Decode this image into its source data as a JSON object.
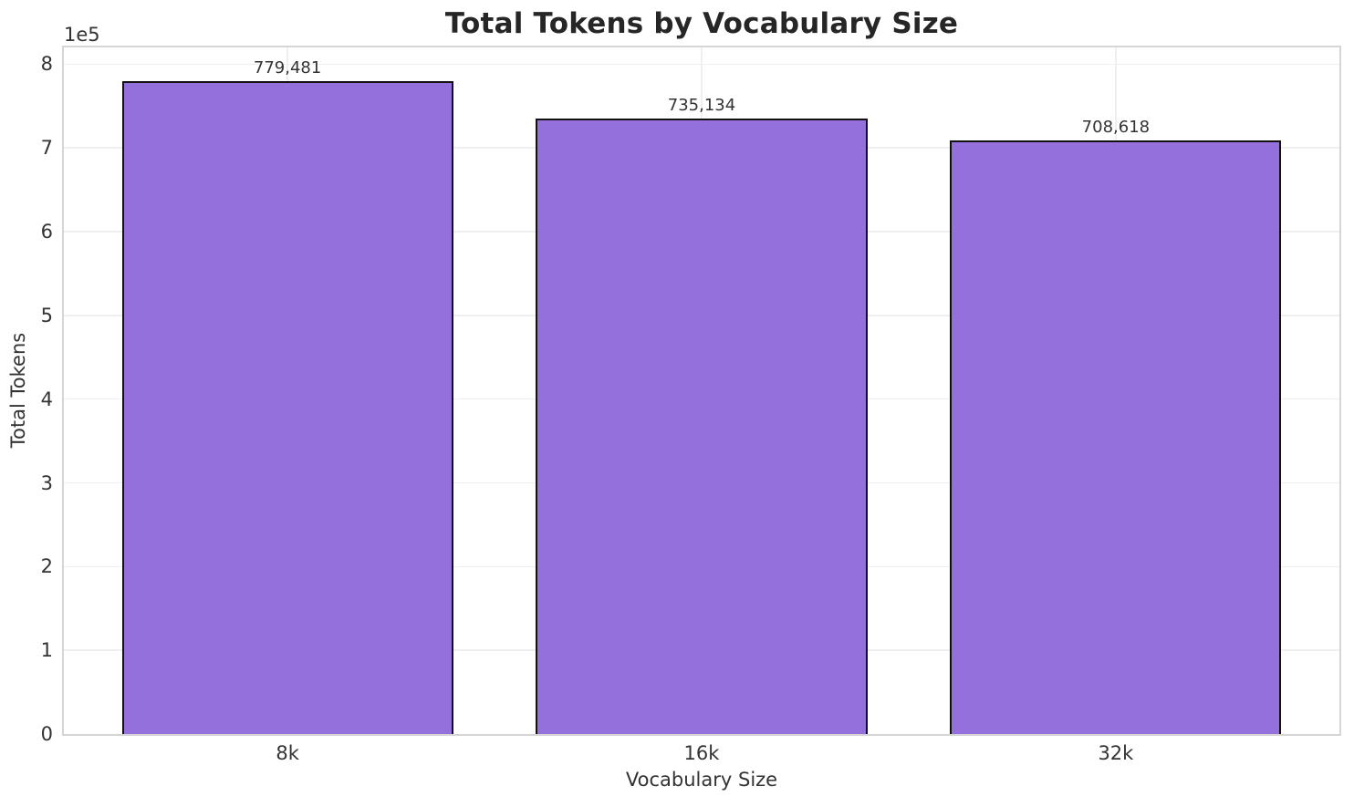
{
  "chart_data": {
    "type": "bar",
    "title": "Total Tokens by Vocabulary Size",
    "xlabel": "Vocabulary Size",
    "ylabel": "Total Tokens",
    "categories": [
      "8k",
      "16k",
      "32k"
    ],
    "values": [
      779481,
      735134,
      708618
    ],
    "bar_labels": [
      "779,481",
      "735,134",
      "708,618"
    ],
    "offset_text": "1e5",
    "y_ticks": [
      0,
      1,
      2,
      3,
      4,
      5,
      6,
      7,
      8
    ],
    "y_tick_scale": 100000,
    "ylim": [
      0,
      820000
    ],
    "xlim": [
      -0.54,
      2.54
    ],
    "bar_width": 0.8,
    "grid": true,
    "legend_position": "none",
    "colors": {
      "bar_fill": "#9370DB",
      "bar_edge": "#111111",
      "grid": "#efefef",
      "spine": "#d5d5d5",
      "title_text": "#262626",
      "text": "#333333",
      "background": "#ffffff"
    }
  }
}
